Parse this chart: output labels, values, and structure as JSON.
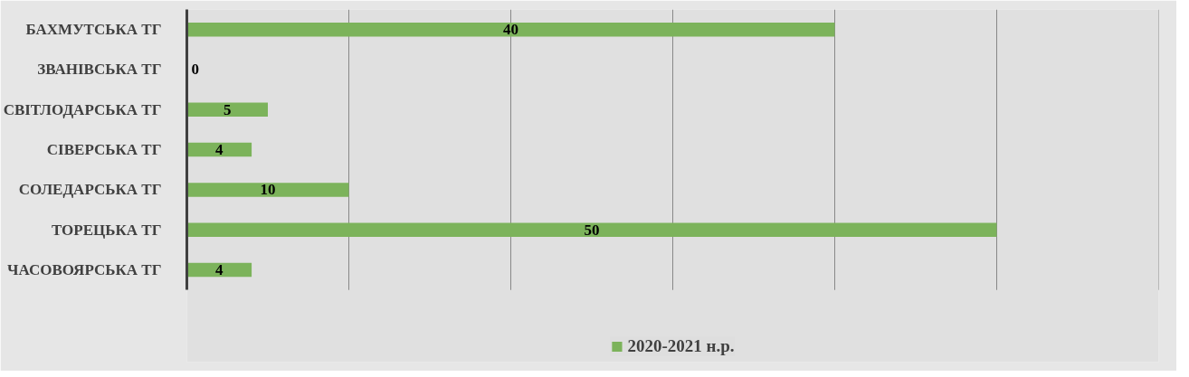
{
  "chart_data": {
    "type": "bar",
    "orientation": "horizontal",
    "categories": [
      "БАХМУТСЬКА ТГ",
      "ЗВАНІВСЬКА ТГ",
      "СВІТЛОДАРСЬКА ТГ",
      "СІВЕРСЬКА ТГ",
      "СОЛЕДАРСЬКА ТГ",
      "ТОРЕЦЬКА ТГ",
      "ЧАСОВОЯРСЬКА ТГ"
    ],
    "series": [
      {
        "name": "2020-2021 н.р.",
        "color": "#7cb35b",
        "values": [
          40,
          0,
          5,
          4,
          10,
          50,
          4
        ]
      }
    ],
    "xlim": [
      0,
      60
    ],
    "xticks": [
      {
        "value": 0,
        "label": null
      },
      {
        "value": 10,
        "label": null
      },
      {
        "value": 20,
        "label": null
      },
      {
        "value": 30,
        "label": null
      },
      {
        "value": 40,
        "label": null
      },
      {
        "value": 50,
        "label": null
      },
      {
        "value": 60,
        "label": null
      }
    ],
    "tick_labels": "y",
    "grid": "x",
    "legend": "bottom",
    "data_labels": true
  }
}
